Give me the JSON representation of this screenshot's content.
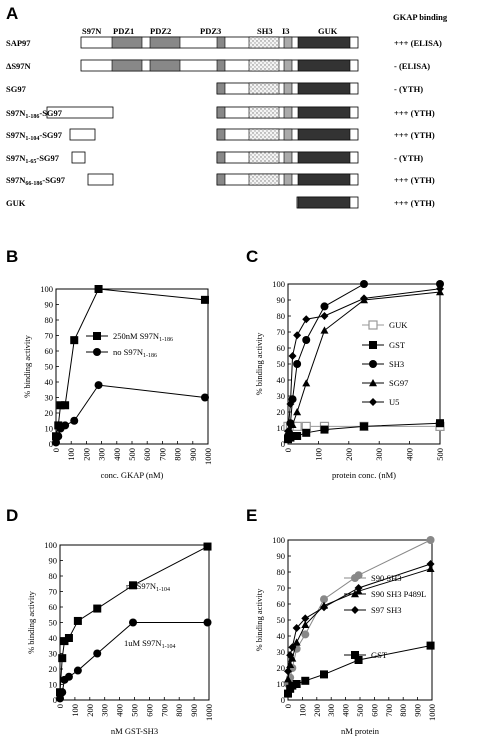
{
  "panel_a": {
    "letter": "A",
    "header": "GKAP binding",
    "domains": [
      "S97N",
      "PDZ1",
      "PDZ2",
      "PDZ3",
      "SH3",
      "I3",
      "GUK"
    ],
    "rows": [
      {
        "name": "SAP97",
        "result": "+++ (ELISA)"
      },
      {
        "name": "ΔS97N",
        "result": "- (ELISA)"
      },
      {
        "name": "SG97",
        "result": "- (YTH)"
      },
      {
        "name": "S97N",
        "sub": "1-186",
        "suffix": "-SG97",
        "result": "+++ (YTH)"
      },
      {
        "name": "S97N",
        "sub": "1-104",
        "suffix": "-SG97",
        "result": "+++ (YTH)"
      },
      {
        "name": "S97N",
        "sub": "1-65",
        "suffix": "-SG97",
        "result": "- (YTH)"
      },
      {
        "name": "S97N",
        "sub": "66-186",
        "suffix": "-SG97",
        "result": "+++ (YTH)"
      },
      {
        "name": "GUK",
        "result": "+++ (YTH)"
      }
    ]
  },
  "chart_data": [
    {
      "panel": "B",
      "type": "line",
      "xlabel": "conc. GKAP (nM)",
      "ylabel": "% binding activity",
      "xlim": [
        0,
        1000
      ],
      "ylim": [
        0,
        100
      ],
      "xticks": [
        0,
        100,
        200,
        300,
        400,
        500,
        600,
        700,
        800,
        900,
        1000
      ],
      "yticks": [
        0,
        10,
        20,
        30,
        40,
        50,
        60,
        70,
        80,
        90,
        100
      ],
      "series": [
        {
          "name": "250nM S97N",
          "sub": "1-186",
          "marker": "square",
          "x": [
            0,
            15,
            30,
            60,
            120,
            280,
            980
          ],
          "y": [
            5,
            12,
            25,
            25,
            67,
            100,
            93
          ]
        },
        {
          "name": "no S97N",
          "sub": "1-186",
          "marker": "circle",
          "x": [
            0,
            15,
            30,
            60,
            120,
            280,
            980
          ],
          "y": [
            1,
            5,
            10,
            12,
            15,
            38,
            30
          ]
        }
      ]
    },
    {
      "panel": "C",
      "type": "line",
      "xlabel": "protein conc. (nM)",
      "ylabel": "% binding activity",
      "xlim": [
        0,
        500
      ],
      "ylim": [
        0,
        100
      ],
      "xticks": [
        0,
        100,
        200,
        300,
        400,
        500
      ],
      "yticks": [
        0,
        10,
        20,
        30,
        40,
        50,
        60,
        70,
        80,
        90,
        100
      ],
      "series": [
        {
          "name": "GUK",
          "marker": "open-square",
          "color": "#999999",
          "x": [
            0,
            8,
            15,
            30,
            60,
            120,
            250,
            500
          ],
          "y": [
            11,
            11,
            11,
            11,
            11,
            11,
            11,
            11
          ]
        },
        {
          "name": "GST",
          "marker": "square",
          "x": [
            0,
            8,
            15,
            30,
            60,
            120,
            250,
            500
          ],
          "y": [
            3,
            4,
            5,
            5,
            7,
            9,
            11,
            13
          ]
        },
        {
          "name": "SH3",
          "marker": "circle",
          "x": [
            0,
            8,
            15,
            30,
            60,
            120,
            250,
            500
          ],
          "y": [
            5,
            13,
            28,
            50,
            65,
            86,
            100,
            100
          ]
        },
        {
          "name": "SG97",
          "marker": "triangle",
          "x": [
            0,
            8,
            15,
            30,
            60,
            120,
            250,
            500
          ],
          "y": [
            4,
            8,
            12,
            20,
            38,
            71,
            90,
            95
          ]
        },
        {
          "name": "U5",
          "marker": "diamond",
          "x": [
            0,
            8,
            15,
            30,
            60,
            120,
            250,
            500
          ],
          "y": [
            8,
            25,
            55,
            68,
            78,
            80,
            91,
            97
          ]
        }
      ]
    },
    {
      "panel": "D",
      "type": "line",
      "xlabel": "nM GST-SH3",
      "ylabel": "% binding activity",
      "xlim": [
        0,
        1000
      ],
      "ylim": [
        0,
        100
      ],
      "xticks": [
        0,
        100,
        200,
        300,
        400,
        500,
        600,
        700,
        800,
        900,
        1000
      ],
      "yticks": [
        0,
        10,
        20,
        30,
        40,
        50,
        60,
        70,
        80,
        90,
        100
      ],
      "series": [
        {
          "name": "no S97N",
          "sub": "1-104",
          "marker": "square",
          "x": [
            0,
            15,
            30,
            60,
            120,
            250,
            490,
            990
          ],
          "y": [
            5,
            27,
            38,
            40,
            51,
            59,
            74,
            99
          ]
        },
        {
          "name": "1uM S97N",
          "sub": "1-104",
          "marker": "circle",
          "x": [
            0,
            15,
            30,
            60,
            120,
            250,
            490,
            990
          ],
          "y": [
            1,
            5,
            13,
            15,
            19,
            30,
            50,
            50
          ]
        }
      ]
    },
    {
      "panel": "E",
      "type": "line",
      "xlabel": "nM protein",
      "ylabel": "% binding activity",
      "xlim": [
        0,
        1000
      ],
      "ylim": [
        0,
        100
      ],
      "xticks": [
        0,
        100,
        200,
        300,
        400,
        500,
        600,
        700,
        800,
        900,
        1000
      ],
      "yticks": [
        0,
        10,
        20,
        30,
        40,
        50,
        60,
        70,
        80,
        90,
        100
      ],
      "series": [
        {
          "name": "S90 SH3",
          "marker": "circle",
          "color": "#888888",
          "x": [
            0,
            15,
            30,
            60,
            120,
            250,
            490,
            990
          ],
          "y": [
            10,
            14,
            20,
            32,
            41,
            63,
            78,
            100
          ]
        },
        {
          "name": "S90 SH3 P489L",
          "marker": "triangle",
          "x": [
            0,
            15,
            30,
            60,
            120,
            250,
            490,
            990
          ],
          "y": [
            13,
            22,
            26,
            36,
            47,
            59,
            68,
            82
          ]
        },
        {
          "name": "S97 SH3",
          "marker": "diamond",
          "x": [
            0,
            15,
            30,
            60,
            120,
            250,
            490,
            990
          ],
          "y": [
            18,
            28,
            33,
            45,
            51,
            58,
            70,
            85
          ]
        },
        {
          "name": "GST",
          "marker": "square",
          "x": [
            0,
            15,
            30,
            60,
            120,
            250,
            490,
            990
          ],
          "y": [
            4,
            7,
            9,
            10,
            12,
            16,
            25,
            34
          ]
        }
      ]
    }
  ]
}
